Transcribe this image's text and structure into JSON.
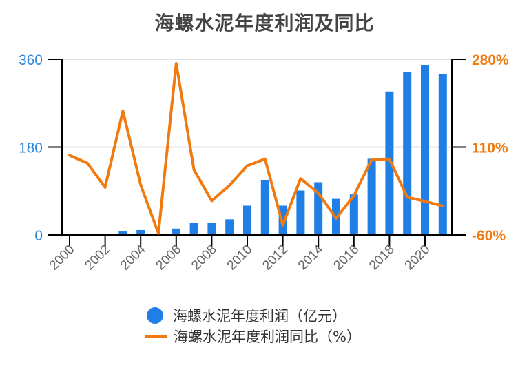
{
  "title": "海螺水泥年度利润及同比",
  "colors": {
    "bar": "#1f7fe6",
    "line": "#f07a10",
    "left_axis_text": "#2b86de",
    "right_axis_text": "#f07a10",
    "grid": "#e2e2e2",
    "axis": "#000000",
    "title": "#444444",
    "xtick_text": "#666666"
  },
  "legend": [
    {
      "label": "海螺水泥年度利润（亿元）",
      "marker": "circle"
    },
    {
      "label": "海螺水泥年度利润同比（%）",
      "marker": "line"
    }
  ],
  "chart_data": {
    "type": "bar+line",
    "title": "海螺水泥年度利润及同比",
    "categories": [
      2000,
      2001,
      2002,
      2003,
      2004,
      2005,
      2006,
      2007,
      2008,
      2009,
      2010,
      2011,
      2012,
      2013,
      2014,
      2015,
      2016,
      2017,
      2018,
      2019,
      2020,
      2021
    ],
    "xtick_labels": [
      "2000",
      "2002",
      "2004",
      "2006",
      "2008",
      "2010",
      "2012",
      "2014",
      "2016",
      "2018",
      "2020"
    ],
    "series": [
      {
        "name": "海螺水泥年度利润（亿元）",
        "type": "bar",
        "axis": "left",
        "values": [
          0,
          0,
          0,
          7,
          10,
          0,
          13,
          24,
          24,
          32,
          60,
          113,
          60,
          91,
          108,
          74,
          83,
          156,
          294,
          334,
          348,
          329
        ]
      },
      {
        "name": "海螺水泥年度利润同比（%）",
        "type": "line",
        "axis": "right",
        "values": [
          94,
          79,
          32,
          180,
          37,
          -57,
          272,
          66,
          6,
          36,
          74,
          87,
          -41,
          49,
          21,
          -28,
          16,
          86,
          87,
          13,
          5,
          -4
        ]
      }
    ],
    "left_axis": {
      "ticks": [
        "0",
        "180",
        "360"
      ],
      "ylim": [
        0,
        360
      ]
    },
    "right_axis": {
      "ticks": [
        "-60%",
        "110%",
        "280%"
      ],
      "ylim": [
        -60,
        280
      ]
    },
    "grid": true,
    "legend_position": "bottom"
  }
}
